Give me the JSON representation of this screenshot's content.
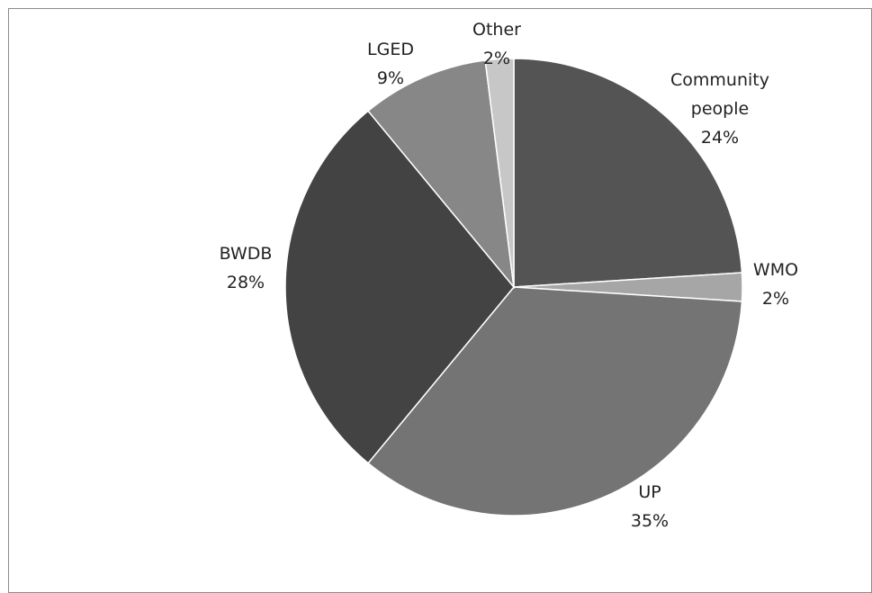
{
  "chart_data": {
    "type": "pie",
    "title": "",
    "start_angle_deg": 0,
    "direction": "clockwise",
    "slices": [
      {
        "label": "Community people",
        "label_lines": [
          "Community",
          "people"
        ],
        "value": 24,
        "pct_label": "24%",
        "color": "#545454"
      },
      {
        "label": "WMO",
        "label_lines": [
          "WMO"
        ],
        "value": 2,
        "pct_label": "2%",
        "color": "#a6a6a6"
      },
      {
        "label": "UP",
        "label_lines": [
          "UP"
        ],
        "value": 35,
        "pct_label": "35%",
        "color": "#747474"
      },
      {
        "label": "BWDB",
        "label_lines": [
          "BWDB"
        ],
        "value": 28,
        "pct_label": "28%",
        "color": "#434343"
      },
      {
        "label": "LGED",
        "label_lines": [
          "LGED"
        ],
        "value": 9,
        "pct_label": "9%",
        "color": "#878787"
      },
      {
        "label": "Other",
        "label_lines": [
          "Other"
        ],
        "value": 2,
        "pct_label": "2%",
        "color": "#c7c7c7"
      }
    ],
    "legend": "none",
    "data_labels": "category and percentage"
  }
}
